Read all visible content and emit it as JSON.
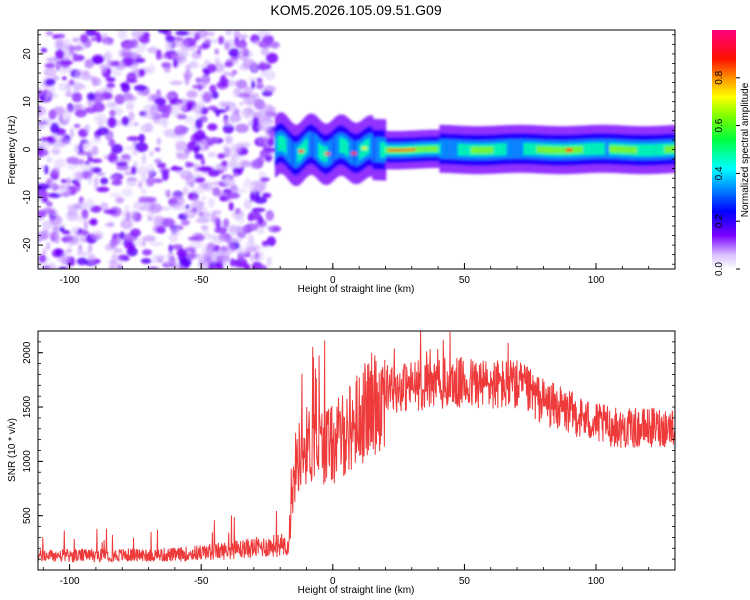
{
  "title": "KOM5.2026.105.09.51.G09",
  "colors": {
    "snr_line": "#ee3a3a",
    "frame": "#000000",
    "background": "#ffffff"
  },
  "chart_data": [
    {
      "type": "heatmap",
      "xlabel": "Height of straight line (km)",
      "ylabel": "Frequency (Hz)",
      "xlim": [
        -112,
        130
      ],
      "ylim": [
        -25,
        25
      ],
      "x_ticks": [
        -100,
        -50,
        0,
        50,
        100
      ],
      "y_ticks": [
        -20,
        -10,
        0,
        10,
        20
      ],
      "colorbar": {
        "label": "Normalized spectral amplitude",
        "range": [
          0.0,
          1.0
        ],
        "ticks": [
          0.0,
          0.2,
          0.4,
          0.6,
          0.8
        ],
        "tick_labels": [
          "0.0",
          "0.2",
          "0.4",
          "0.6",
          "0.8"
        ],
        "colormap": "rainbow (white → violet → blue → cyan → green → yellow → red → magenta)"
      },
      "features": {
        "noise_region_km": [
          -112,
          -22
        ],
        "signal_start_km": -22,
        "signal_frequency_hz": 0,
        "signal_peak_amplitude": 0.9
      }
    },
    {
      "type": "line",
      "xlabel": "Height of straight line (km)",
      "ylabel": "SNR (10 * v/v)",
      "xlim": [
        -112,
        130
      ],
      "ylim": [
        0,
        2200
      ],
      "x_ticks": [
        -100,
        -50,
        0,
        50,
        100
      ],
      "y_ticks": [
        500,
        1000,
        1500,
        2000
      ],
      "series": [
        {
          "envelope_x": [
            -112,
            -60,
            -40,
            -20,
            -17,
            -14,
            -10,
            0,
            10,
            20,
            30,
            50,
            70,
            80,
            100,
            110,
            130
          ],
          "envelope_y": [
            130,
            140,
            180,
            230,
            250,
            1000,
            1150,
            1150,
            1400,
            1650,
            1700,
            1720,
            1700,
            1550,
            1350,
            1300,
            1320
          ]
        }
      ]
    }
  ]
}
